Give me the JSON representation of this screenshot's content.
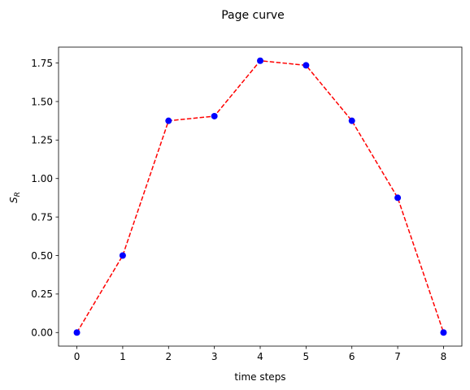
{
  "chart_data": {
    "type": "line",
    "title": "Page curve",
    "xlabel": "time steps",
    "ylabel": "S",
    "ylabel_subscript": "R",
    "x": [
      0,
      1,
      2,
      3,
      4,
      5,
      6,
      7,
      8
    ],
    "series": [
      {
        "values": [
          0.0,
          0.5,
          1.375,
          1.405,
          1.765,
          1.735,
          1.375,
          0.875,
          0.0
        ],
        "line_color": "#ff0000",
        "line_style": "dashed",
        "marker_color": "#0000ff"
      }
    ],
    "xlim": [
      -0.4,
      8.4
    ],
    "ylim": [
      -0.0883,
      1.8533
    ],
    "xticks": [
      0,
      1,
      2,
      3,
      4,
      5,
      6,
      7,
      8
    ],
    "xtick_labels": [
      "0",
      "1",
      "2",
      "3",
      "4",
      "5",
      "6",
      "7",
      "8"
    ],
    "yticks": [
      0.0,
      0.25,
      0.5,
      0.75,
      1.0,
      1.25,
      1.5,
      1.75
    ],
    "ytick_labels": [
      "0.00",
      "0.25",
      "0.50",
      "0.75",
      "1.00",
      "1.25",
      "1.50",
      "1.75"
    ],
    "grid": false,
    "legend": "none"
  }
}
